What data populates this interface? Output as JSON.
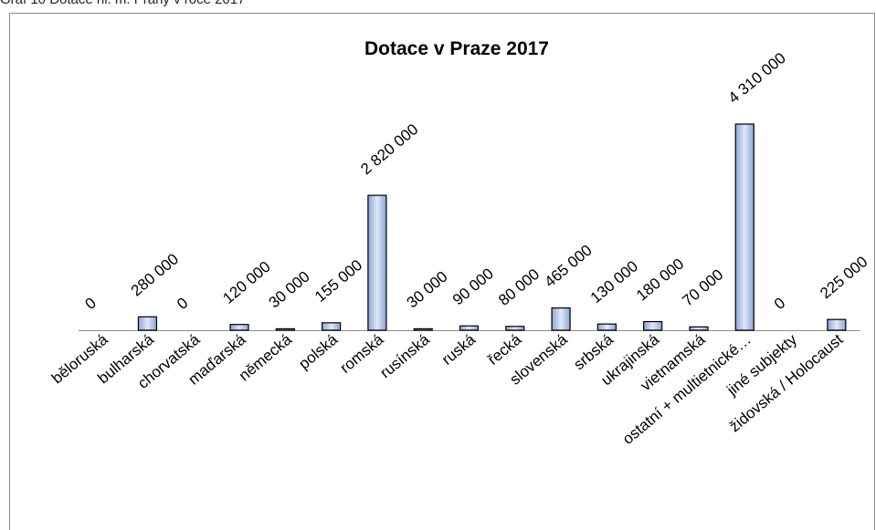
{
  "caption": "Graf 10 Dotace hl. m. Prahy v roce 2017",
  "chart_data": {
    "type": "bar",
    "title": "Dotace v Praze 2017",
    "categories": [
      "běloruská",
      "bulharská",
      "chorvatská",
      "maďarská",
      "německá",
      "polská",
      "romská",
      "rusínská",
      "ruská",
      "řecká",
      "slovenská",
      "srbská",
      "ukrajinská",
      "vietnamská",
      "ostatní + multietnické…",
      "jiné subjekty",
      "židovská / Holocaust"
    ],
    "values": [
      0,
      280000,
      0,
      120000,
      30000,
      155000,
      2820000,
      30000,
      90000,
      80000,
      465000,
      130000,
      180000,
      70000,
      4310000,
      0,
      225000
    ],
    "value_labels": [
      "0",
      "280 000",
      "0",
      "120 000",
      "30 000",
      "155 000",
      "2 820 000",
      "30 000",
      "90 000",
      "80 000",
      "465 000",
      "130 000",
      "180 000",
      "70 000",
      "4 310 000",
      "0",
      "225 000"
    ],
    "color": "#c9d7ee"
  }
}
